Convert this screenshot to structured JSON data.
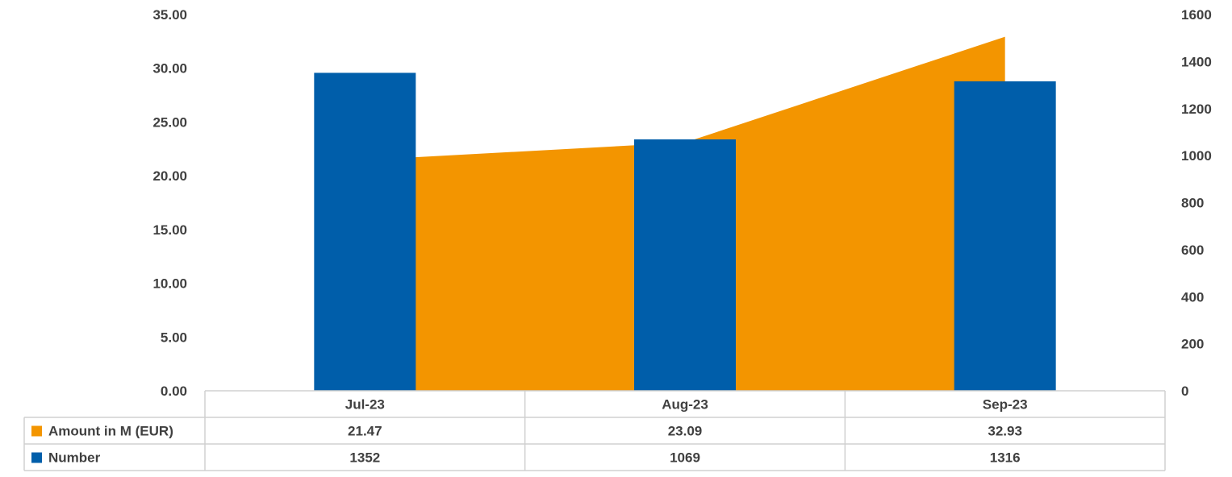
{
  "chart_data": {
    "type": "bar",
    "categories": [
      "Jul-23",
      "Aug-23",
      "Sep-23"
    ],
    "series": [
      {
        "name": "Amount in M (EUR)",
        "kind": "area",
        "axis": "left",
        "color": "#F39500",
        "values": [
          21.47,
          23.09,
          32.93
        ]
      },
      {
        "name": "Number",
        "kind": "bar",
        "axis": "right",
        "color": "#005EAA",
        "values": [
          1352,
          1069,
          1316
        ]
      }
    ],
    "y_left": {
      "min": 0,
      "max": 35,
      "ticks": [
        "0.00",
        "5.00",
        "10.00",
        "15.00",
        "20.00",
        "25.00",
        "30.00",
        "35.00"
      ]
    },
    "y_right": {
      "min": 0,
      "max": 1600,
      "ticks": [
        "0",
        "200",
        "400",
        "600",
        "800",
        "1000",
        "1200",
        "1400",
        "1600"
      ]
    },
    "data_table": true,
    "grid": false,
    "legend": "data-table"
  },
  "table": {
    "rows": [
      {
        "label": "Amount in M (EUR)",
        "color": "#F39500",
        "values": [
          "21.47",
          "23.09",
          "32.93"
        ]
      },
      {
        "label": "Number",
        "color": "#005EAA",
        "values": [
          "1352",
          "1069",
          "1316"
        ]
      }
    ]
  }
}
